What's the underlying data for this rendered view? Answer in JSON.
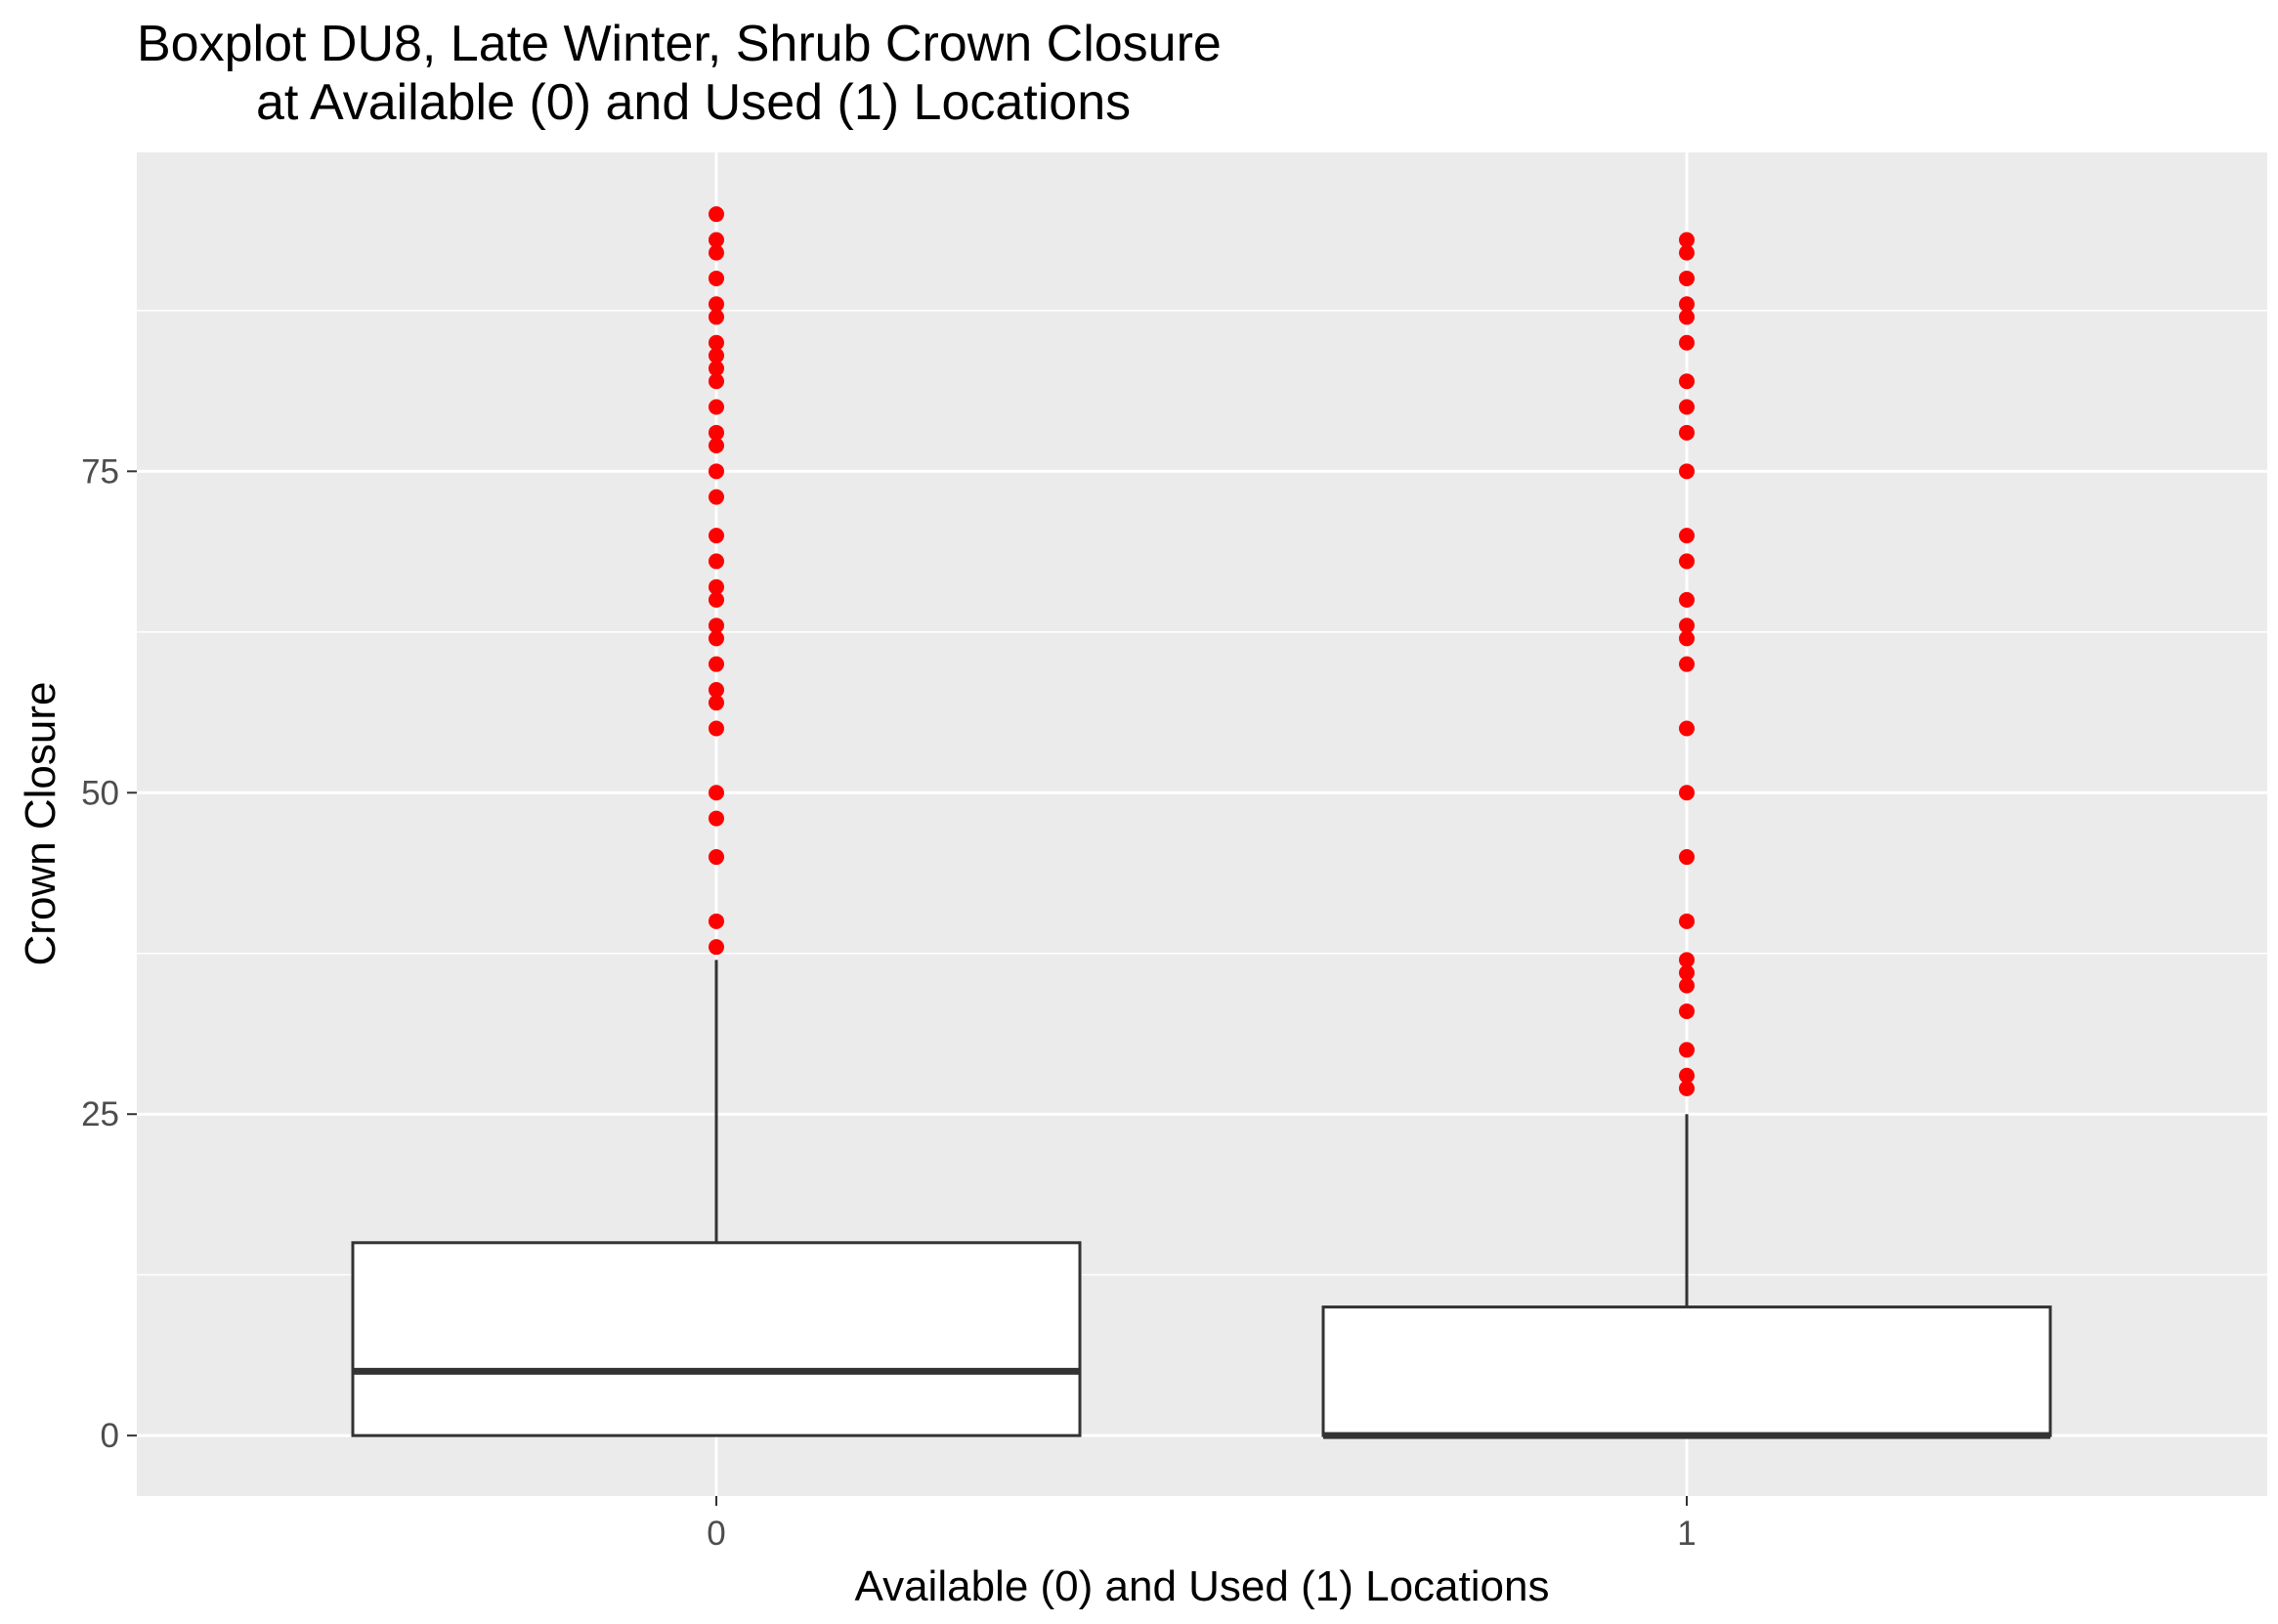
{
  "chart_data": {
    "type": "boxplot",
    "title_line1": "Boxplot DU8, Late Winter, Shrub Crown Closure",
    "title_line2": "at Available (0) and Used (1) Locations",
    "xlabel": "Available (0) and Used (1) Locations",
    "ylabel": "Crown Closure",
    "categories": [
      "0",
      "1"
    ],
    "y_ticks": [
      0,
      25,
      50,
      75
    ],
    "y_tick_labels": [
      "0",
      "25",
      "50",
      "75"
    ],
    "ylim": [
      -4.7,
      99.8
    ],
    "grid": true,
    "panel_background": "#ebebeb",
    "grid_color": "#ffffff",
    "outlier_color": "#ff0000",
    "box_fill": "#ffffff",
    "box_stroke": "#333333",
    "boxes": [
      {
        "category": "0",
        "min": 0,
        "q1": 0,
        "median": 5,
        "q3": 15,
        "whisker_high": 37,
        "outliers": [
          38,
          40,
          45,
          48,
          50,
          55,
          57,
          58,
          60,
          62,
          63,
          65,
          66,
          68,
          70,
          73,
          75,
          77,
          78,
          80,
          82,
          83,
          84,
          85,
          87,
          88,
          90,
          92,
          93,
          95
        ]
      },
      {
        "category": "1",
        "min": 0,
        "q1": 0,
        "median": 0,
        "q3": 10,
        "whisker_high": 25,
        "outliers": [
          27,
          28,
          30,
          33,
          35,
          36,
          37,
          40,
          45,
          50,
          55,
          60,
          62,
          63,
          65,
          68,
          70,
          75,
          78,
          80,
          82,
          85,
          87,
          88,
          90,
          92,
          93
        ]
      }
    ]
  }
}
